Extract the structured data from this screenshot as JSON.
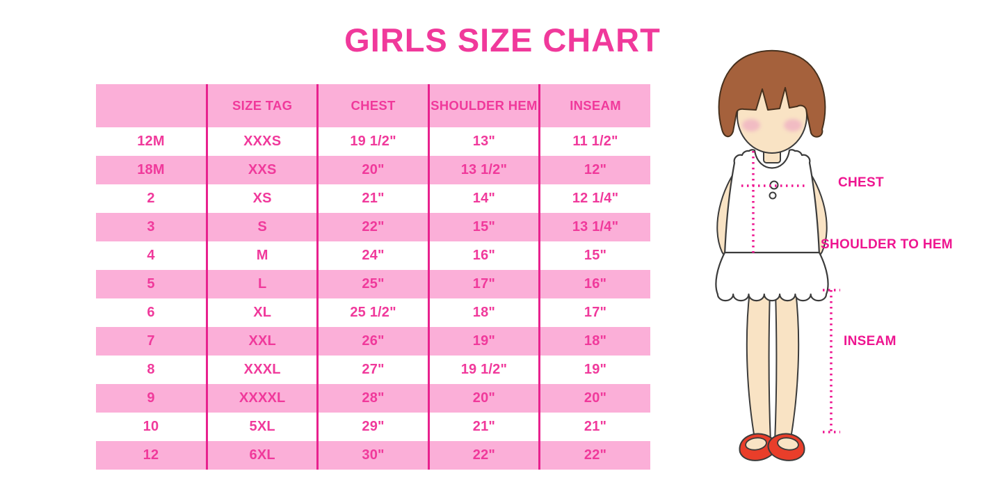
{
  "title": "GIRLS SIZE CHART",
  "colors": {
    "title_text": "#F0399B",
    "cell_text": "#F0399B",
    "row_pink": "#FBAFD8",
    "grid_line": "#E8218E",
    "label_text": "#EE1590",
    "hair": "#A5613C",
    "skin": "#F9E3C4",
    "blush": "#F0B6C3",
    "shoe": "#E93E2A"
  },
  "chart_data": {
    "type": "table",
    "title": "GIRLS SIZE CHART",
    "columns": [
      "",
      "SIZE TAG",
      "CHEST",
      "SHOULDER HEM",
      "INSEAM"
    ],
    "rows": [
      [
        "12M",
        "XXXS",
        "19 1/2\"",
        "13\"",
        "11 1/2\""
      ],
      [
        "18M",
        "XXS",
        "20\"",
        "13 1/2\"",
        "12\""
      ],
      [
        "2",
        "XS",
        "21\"",
        "14\"",
        "12 1/4\""
      ],
      [
        "3",
        "S",
        "22\"",
        "15\"",
        "13 1/4\""
      ],
      [
        "4",
        "M",
        "24\"",
        "16\"",
        "15\""
      ],
      [
        "5",
        "L",
        "25\"",
        "17\"",
        "16\""
      ],
      [
        "6",
        "XL",
        "25 1/2\"",
        "18\"",
        "17\""
      ],
      [
        "7",
        "XXL",
        "26\"",
        "19\"",
        "18\""
      ],
      [
        "8",
        "XXXL",
        "27\"",
        "19 1/2\"",
        "19\""
      ],
      [
        "9",
        "XXXXL",
        "28\"",
        "20\"",
        "20\""
      ],
      [
        "10",
        "5XL",
        "29\"",
        "21\"",
        "21\""
      ],
      [
        "12",
        "6XL",
        "30\"",
        "22\"",
        "22\""
      ]
    ],
    "layout_hints": {
      "stripe_pattern": "header pink, body rows alternate white/pink starting white",
      "grid": "vertical magenta separators only, no horizontal or outer borders"
    }
  },
  "figure_labels": {
    "chest": "CHEST",
    "shoulder_to_hem": "SHOULDER TO HEM",
    "inseam": "INSEAM"
  }
}
